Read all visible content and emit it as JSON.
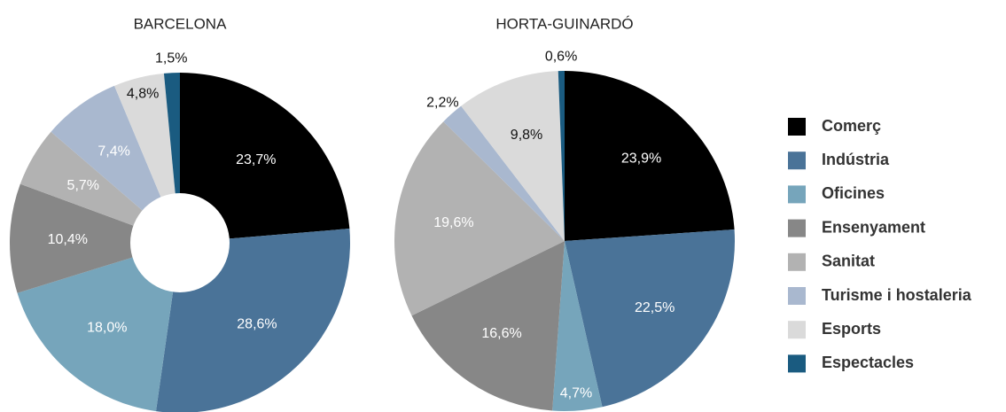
{
  "chart_data": [
    {
      "type": "donut",
      "title": "BARCELONA",
      "categories": [
        "Comerç",
        "Indústria",
        "Oficines",
        "Ensenyament",
        "Sanitat",
        "Turisme i hostaleria",
        "Esports",
        "Espectacles"
      ],
      "values": [
        23.7,
        28.6,
        18.0,
        10.4,
        5.7,
        7.4,
        4.8,
        1.5
      ],
      "value_labels": [
        "23,7%",
        "28,6%",
        "18,0%",
        "10,4%",
        "5,7%",
        "7,4%",
        "4,8%",
        "1,5%"
      ],
      "colors": [
        "#000000",
        "#4a7398",
        "#76a5bb",
        "#878787",
        "#b2b2b2",
        "#a9b8cf",
        "#dadada",
        "#1a5b80"
      ],
      "legend": "right"
    },
    {
      "type": "pie",
      "title": "HORTA-GUINARDÓ",
      "categories": [
        "Comerç",
        "Indústria",
        "Oficines",
        "Ensenyament",
        "Sanitat",
        "Turisme i hostaleria",
        "Esports",
        "Espectacles"
      ],
      "values": [
        23.9,
        22.5,
        4.7,
        16.6,
        19.6,
        2.2,
        9.8,
        0.6
      ],
      "value_labels": [
        "23,9%",
        "22,5%",
        "4,7%",
        "16,6%",
        "19,6%",
        "2,2%",
        "9,8%",
        "0,6%"
      ],
      "colors": [
        "#000000",
        "#4a7398",
        "#76a5bb",
        "#878787",
        "#b2b2b2",
        "#a9b8cf",
        "#dadada",
        "#1a5b80"
      ],
      "legend": "right"
    }
  ]
}
